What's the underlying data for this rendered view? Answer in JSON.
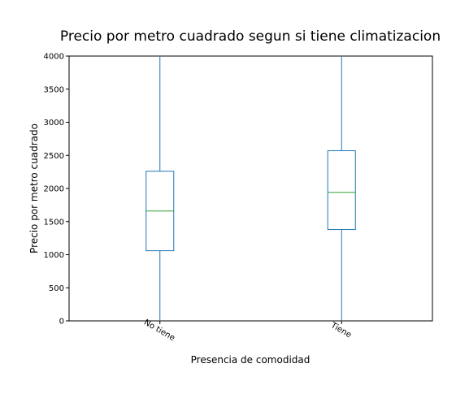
{
  "chart_data": {
    "type": "box",
    "title": "Precio por metro cuadrado segun si tiene climatizacion",
    "xlabel": "Presencia de comodidad",
    "ylabel": "Precio por metro cuadrado",
    "ylim": [
      0,
      4000
    ],
    "yticks": [
      0,
      500,
      1000,
      1500,
      2000,
      2500,
      3000,
      3500,
      4000
    ],
    "categories": [
      "No tiene",
      "Tiene"
    ],
    "boxes": [
      {
        "category": "No tiene",
        "whisker_low": 0,
        "q1": 1060,
        "median": 1660,
        "q3": 2260,
        "whisker_high": 4000
      },
      {
        "category": "Tiene",
        "whisker_low": 0,
        "q1": 1380,
        "median": 1940,
        "q3": 2570,
        "whisker_high": 4000
      }
    ],
    "grid": false,
    "colors": {
      "box": "#1f77b4",
      "median": "#2ca02c",
      "axes": "#000000"
    }
  }
}
